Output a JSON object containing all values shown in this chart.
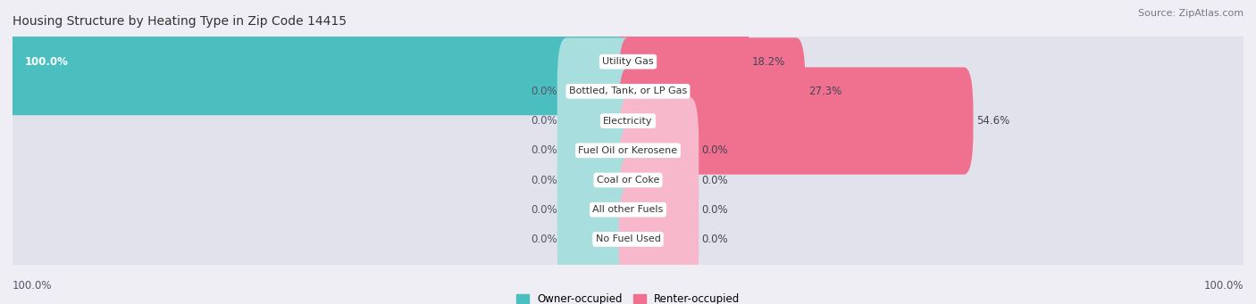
{
  "title": "Housing Structure by Heating Type in Zip Code 14415",
  "source": "Source: ZipAtlas.com",
  "categories": [
    "Utility Gas",
    "Bottled, Tank, or LP Gas",
    "Electricity",
    "Fuel Oil or Kerosene",
    "Coal or Coke",
    "All other Fuels",
    "No Fuel Used"
  ],
  "owner_values": [
    100.0,
    0.0,
    0.0,
    0.0,
    0.0,
    0.0,
    0.0
  ],
  "renter_values": [
    18.2,
    27.3,
    54.6,
    0.0,
    0.0,
    0.0,
    0.0
  ],
  "owner_color": "#4bbfbf",
  "renter_color": "#f07090",
  "renter_color_light": "#f7b8cc",
  "owner_label": "Owner-occupied",
  "renter_label": "Renter-occupied",
  "background_color": "#eeeef4",
  "bar_background": "#e2e2ec",
  "row_background": "#f5f5fa",
  "title_fontsize": 10,
  "source_fontsize": 8,
  "label_fontsize": 8.5,
  "cat_fontsize": 8,
  "axis_label_left": "100.0%",
  "axis_label_right": "100.0%",
  "max_value": 100.0,
  "default_stub_pct": 10.0
}
